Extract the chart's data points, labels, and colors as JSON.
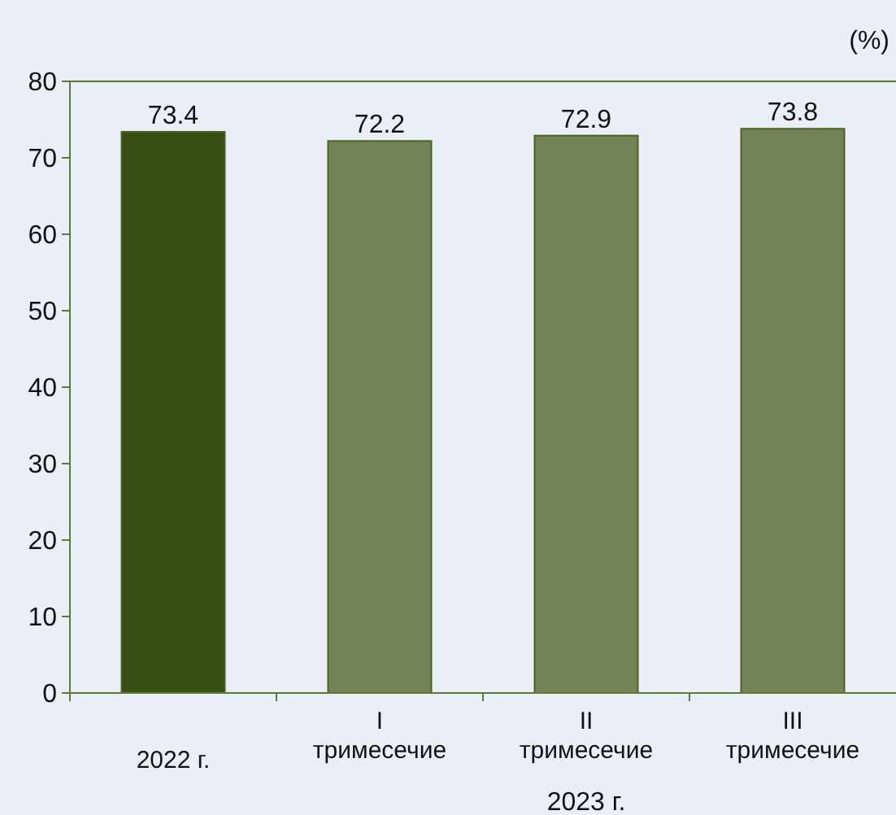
{
  "chart_data": {
    "type": "bar",
    "ylabel": "(%)",
    "categories": [
      "2022 г.",
      "I\nтримесечие",
      "II\nтримесечие",
      "III\nтримесечие"
    ],
    "values": [
      73.4,
      72.2,
      72.9,
      73.8
    ],
    "colors": [
      "#3a4f16",
      "#74845a",
      "#74845a",
      "#74845a"
    ],
    "ylim": [
      0,
      80
    ],
    "yticks": [
      0,
      10,
      20,
      30,
      40,
      50,
      60,
      70,
      80
    ],
    "data_labels": true,
    "annotations": [
      "2023 г."
    ]
  }
}
